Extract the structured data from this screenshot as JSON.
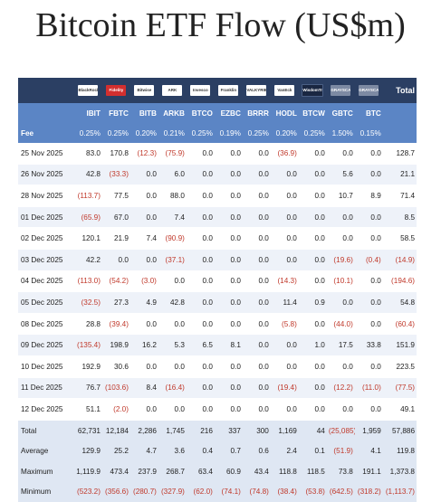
{
  "title": "Bitcoin ETF Flow (US$m)",
  "header": {
    "total_label": "Total",
    "fee_label": "Fee",
    "logos": [
      {
        "name": "blackrock-logo",
        "text": "BlackRock",
        "style": ""
      },
      {
        "name": "fidelity-logo",
        "text": "Fidelity",
        "style": "red"
      },
      {
        "name": "bitwise-logo",
        "text": "Bitwise",
        "style": ""
      },
      {
        "name": "ark-logo",
        "text": "ARK",
        "style": ""
      },
      {
        "name": "invesco-logo",
        "text": "Invesco",
        "style": ""
      },
      {
        "name": "franklin-logo",
        "text": "Franklin",
        "style": ""
      },
      {
        "name": "valkyrie-logo",
        "text": "VALKYRIE",
        "style": ""
      },
      {
        "name": "vaneck-logo",
        "text": "VanEck",
        "style": ""
      },
      {
        "name": "wisdomtree-logo",
        "text": "WisdomTree",
        "style": "dark"
      },
      {
        "name": "grayscale-logo",
        "text": "GRAYSCALE",
        "style": "grey"
      },
      {
        "name": "grayscale-mini-logo",
        "text": "GRAYSCALE",
        "style": "grey"
      }
    ],
    "tickers": [
      "IBIT",
      "FBTC",
      "BITB",
      "ARKB",
      "BTCO",
      "EZBC",
      "BRRR",
      "HODL",
      "BTCW",
      "GBTC",
      "BTC"
    ],
    "fees": [
      "0.25%",
      "0.25%",
      "0.20%",
      "0.21%",
      "0.25%",
      "0.19%",
      "0.25%",
      "0.20%",
      "0.25%",
      "1.50%",
      "0.15%"
    ]
  },
  "rows": [
    {
      "date": "25 Nov 2025",
      "vals": [
        "83.0",
        "170.8",
        "(12.3)",
        "(75.9)",
        "0.0",
        "0.0",
        "0.0",
        "(36.9)",
        "0.0",
        "0.0",
        "0.0",
        "128.7"
      ]
    },
    {
      "date": "26 Nov 2025",
      "vals": [
        "42.8",
        "(33.3)",
        "0.0",
        "6.0",
        "0.0",
        "0.0",
        "0.0",
        "0.0",
        "0.0",
        "5.6",
        "0.0",
        "21.1"
      ]
    },
    {
      "date": "28 Nov 2025",
      "vals": [
        "(113.7)",
        "77.5",
        "0.0",
        "88.0",
        "0.0",
        "0.0",
        "0.0",
        "0.0",
        "0.0",
        "10.7",
        "8.9",
        "71.4"
      ]
    },
    {
      "date": "01 Dec 2025",
      "vals": [
        "(65.9)",
        "67.0",
        "0.0",
        "7.4",
        "0.0",
        "0.0",
        "0.0",
        "0.0",
        "0.0",
        "0.0",
        "0.0",
        "8.5"
      ]
    },
    {
      "date": "02 Dec 2025",
      "vals": [
        "120.1",
        "21.9",
        "7.4",
        "(90.9)",
        "0.0",
        "0.0",
        "0.0",
        "0.0",
        "0.0",
        "0.0",
        "0.0",
        "58.5"
      ]
    },
    {
      "date": "03 Dec 2025",
      "vals": [
        "42.2",
        "0.0",
        "0.0",
        "(37.1)",
        "0.0",
        "0.0",
        "0.0",
        "0.0",
        "0.0",
        "(19.6)",
        "(0.4)",
        "(14.9)"
      ]
    },
    {
      "date": "04 Dec 2025",
      "vals": [
        "(113.0)",
        "(54.2)",
        "(3.0)",
        "0.0",
        "0.0",
        "0.0",
        "0.0",
        "(14.3)",
        "0.0",
        "(10.1)",
        "0.0",
        "(194.6)"
      ]
    },
    {
      "date": "05 Dec 2025",
      "vals": [
        "(32.5)",
        "27.3",
        "4.9",
        "42.8",
        "0.0",
        "0.0",
        "0.0",
        "11.4",
        "0.9",
        "0.0",
        "0.0",
        "54.8"
      ]
    },
    {
      "date": "08 Dec 2025",
      "vals": [
        "28.8",
        "(39.4)",
        "0.0",
        "0.0",
        "0.0",
        "0.0",
        "0.0",
        "(5.8)",
        "0.0",
        "(44.0)",
        "0.0",
        "(60.4)"
      ]
    },
    {
      "date": "09 Dec 2025",
      "vals": [
        "(135.4)",
        "198.9",
        "16.2",
        "5.3",
        "6.5",
        "8.1",
        "0.0",
        "0.0",
        "1.0",
        "17.5",
        "33.8",
        "151.9"
      ]
    },
    {
      "date": "10 Dec 2025",
      "vals": [
        "192.9",
        "30.6",
        "0.0",
        "0.0",
        "0.0",
        "0.0",
        "0.0",
        "0.0",
        "0.0",
        "0.0",
        "0.0",
        "223.5"
      ]
    },
    {
      "date": "11 Dec 2025",
      "vals": [
        "76.7",
        "(103.6)",
        "8.4",
        "(16.4)",
        "0.0",
        "0.0",
        "0.0",
        "(19.4)",
        "0.0",
        "(12.2)",
        "(11.0)",
        "(77.5)"
      ]
    },
    {
      "date": "12 Dec 2025",
      "vals": [
        "51.1",
        "(2.0)",
        "0.0",
        "0.0",
        "0.0",
        "0.0",
        "0.0",
        "0.0",
        "0.0",
        "0.0",
        "0.0",
        "49.1"
      ]
    }
  ],
  "summary": [
    {
      "label": "Total",
      "vals": [
        "62,731",
        "12,184",
        "2,286",
        "1,745",
        "216",
        "337",
        "300",
        "1,169",
        "44",
        "(25,085)",
        "1,959",
        "57,886"
      ]
    },
    {
      "label": "Average",
      "vals": [
        "129.9",
        "25.2",
        "4.7",
        "3.6",
        "0.4",
        "0.7",
        "0.6",
        "2.4",
        "0.1",
        "(51.9)",
        "4.1",
        "119.8"
      ]
    },
    {
      "label": "Maximum",
      "vals": [
        "1,119.9",
        "473.4",
        "237.9",
        "268.7",
        "63.4",
        "60.9",
        "43.4",
        "118.8",
        "118.5",
        "73.8",
        "191.1",
        "1,373.8"
      ]
    },
    {
      "label": "Minimum",
      "vals": [
        "(523.2)",
        "(356.6)",
        "(280.7)",
        "(327.9)",
        "(62.0)",
        "(74.1)",
        "(74.8)",
        "(38.4)",
        "(53.8)",
        "(642.5)",
        "(318.2)",
        "(1,113.7)"
      ]
    }
  ]
}
